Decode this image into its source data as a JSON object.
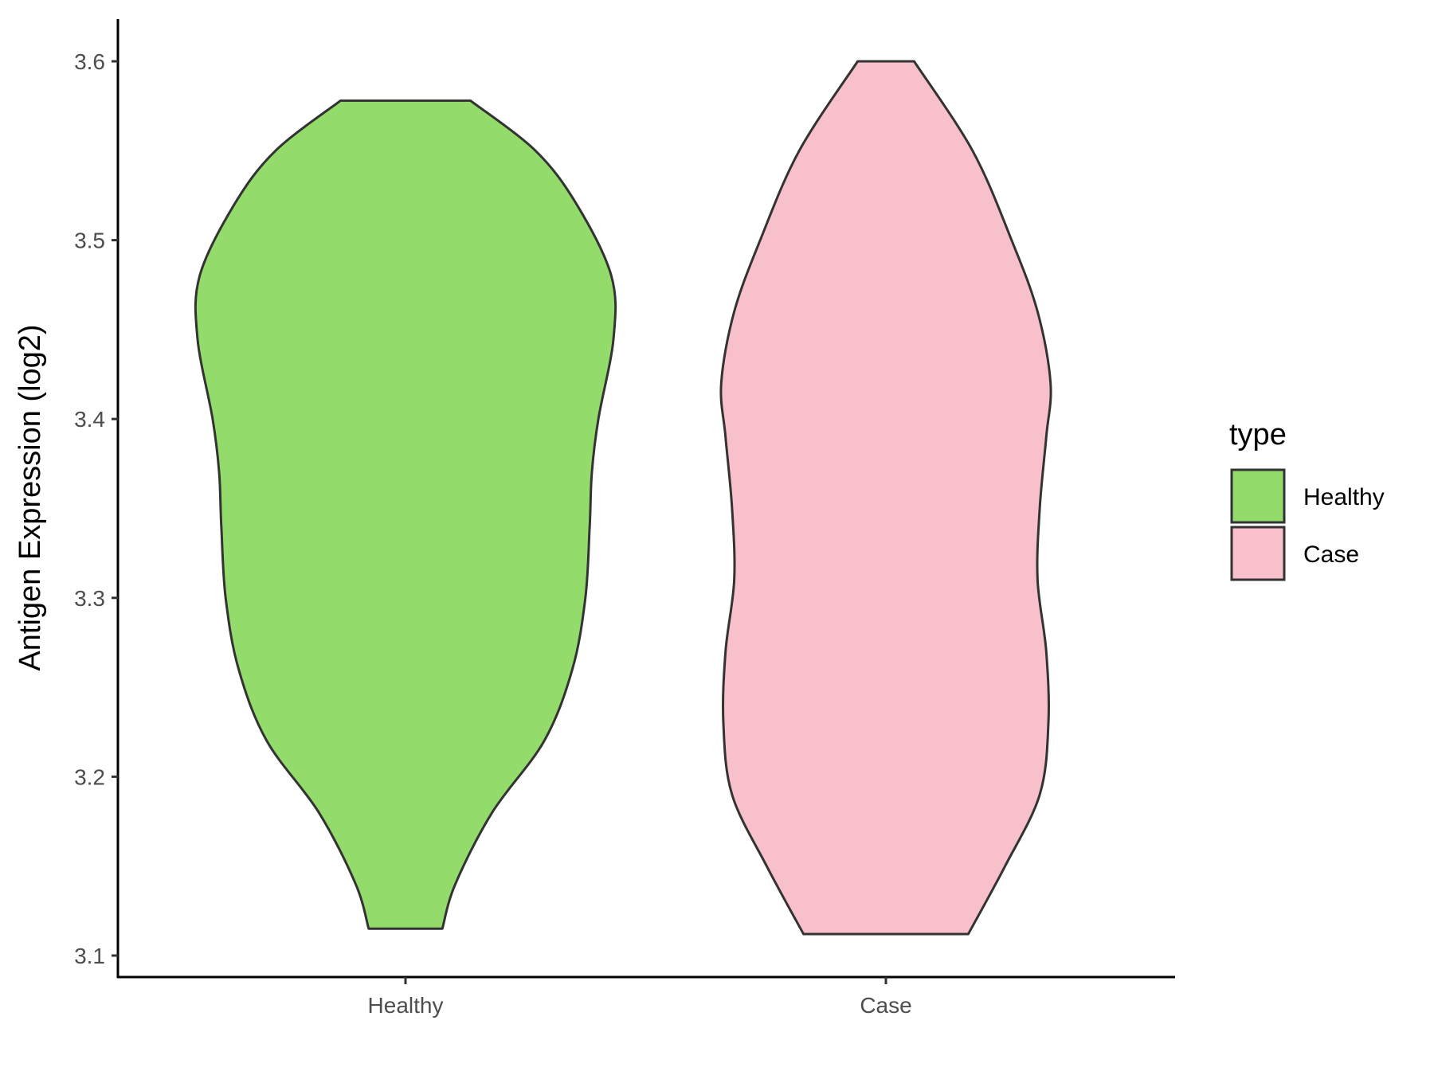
{
  "chart_data": {
    "type": "violin",
    "title": "",
    "xlabel": "",
    "ylabel": "Antigen Expression (log2)",
    "ylim": [
      3.1,
      3.6
    ],
    "yticks": [
      "3.1",
      "3.2",
      "3.3",
      "3.4",
      "3.5",
      "3.6"
    ],
    "categories": [
      "Healthy",
      "Case"
    ],
    "grid": false,
    "legend": {
      "title": "type",
      "position": "right",
      "entries": [
        {
          "label": "Healthy",
          "color": "#93dc6b"
        },
        {
          "label": "Case",
          "color": "#f7c0cb"
        }
      ]
    },
    "series": [
      {
        "category": "Healthy",
        "color": "#93dc6b",
        "min": 3.115,
        "max": 3.578,
        "density_profile": [
          [
            3.115,
            0.17
          ],
          [
            3.14,
            0.23
          ],
          [
            3.18,
            0.4
          ],
          [
            3.22,
            0.64
          ],
          [
            3.26,
            0.77
          ],
          [
            3.3,
            0.83
          ],
          [
            3.34,
            0.85
          ],
          [
            3.37,
            0.86
          ],
          [
            3.4,
            0.89
          ],
          [
            3.445,
            0.96
          ],
          [
            3.48,
            0.95
          ],
          [
            3.52,
            0.79
          ],
          [
            3.55,
            0.6
          ],
          [
            3.578,
            0.3
          ]
        ]
      },
      {
        "category": "Case",
        "color": "#f7c0cb",
        "min": 3.112,
        "max": 3.6,
        "density_profile": [
          [
            3.112,
            0.38
          ],
          [
            3.15,
            0.55
          ],
          [
            3.19,
            0.71
          ],
          [
            3.23,
            0.75
          ],
          [
            3.27,
            0.74
          ],
          [
            3.31,
            0.7
          ],
          [
            3.35,
            0.71
          ],
          [
            3.39,
            0.74
          ],
          [
            3.42,
            0.76
          ],
          [
            3.46,
            0.7
          ],
          [
            3.5,
            0.58
          ],
          [
            3.55,
            0.4
          ],
          [
            3.6,
            0.13
          ]
        ]
      }
    ]
  },
  "style": {
    "outline_color": "#333333",
    "axis_color": "#000000"
  }
}
